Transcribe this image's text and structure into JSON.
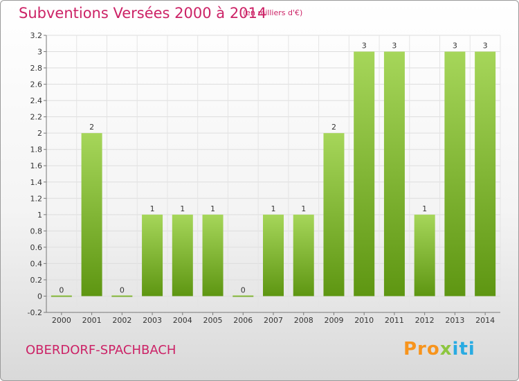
{
  "header": {
    "title": "Subventions Versées 2000 à 2014",
    "subtitle": "(en milliers d'€)"
  },
  "footer": {
    "commune": "OBERDORF-SPACHBACH",
    "logo_parts": [
      "Pro",
      "x",
      "iti"
    ]
  },
  "colors": {
    "title": "#cc2266",
    "bar_light": "#a6d65a",
    "bar_dark": "#5e9612",
    "grid": "#dddddd",
    "logo": [
      "#f7941d",
      "#8dc63f",
      "#29abe2"
    ]
  },
  "chart_data": {
    "type": "bar",
    "title": "Subventions Versées 2000 à 2014",
    "subtitle": "(en milliers d'€)",
    "categories": [
      "2000",
      "2001",
      "2002",
      "2003",
      "2004",
      "2005",
      "2006",
      "2007",
      "2008",
      "2009",
      "2010",
      "2011",
      "2012",
      "2013",
      "2014"
    ],
    "values": [
      0,
      2,
      0,
      1,
      1,
      1,
      0,
      1,
      1,
      2,
      3,
      3,
      1,
      3,
      3
    ],
    "data_labels": [
      "0",
      "2",
      "0",
      "1",
      "1",
      "1",
      "0",
      "1",
      "1",
      "2",
      "3",
      "3",
      "1",
      "3",
      "3"
    ],
    "ylim": [
      -0.2,
      3.2
    ],
    "yticks": [
      -0.2,
      0,
      0.2,
      0.4,
      0.6,
      0.8,
      1,
      1.2,
      1.4,
      1.6,
      1.8,
      2,
      2.2,
      2.4,
      2.6,
      2.8,
      3,
      3.2
    ],
    "ytick_labels": [
      "-0.2",
      "0",
      "0.2",
      "0.4",
      "0.6",
      "0.8",
      "1",
      "1.2",
      "1.4",
      "1.6",
      "1.8",
      "2",
      "2.2",
      "2.4",
      "2.6",
      "2.8",
      "3",
      "3.2"
    ],
    "xlabel": "",
    "ylabel": "",
    "grid": true,
    "legend": "none"
  }
}
